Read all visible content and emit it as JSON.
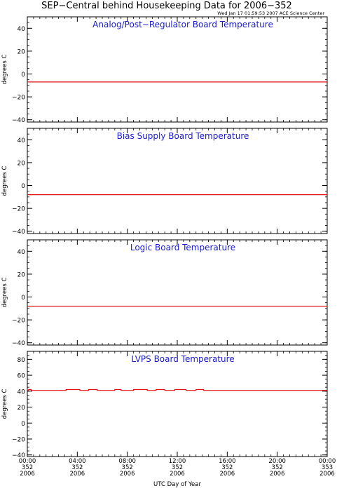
{
  "title": "SEP−Central behind Housekeeping Data for 2006−352",
  "timestamp": "Wed Jan 17 01:59:53 2007 ACE Science Center",
  "xlabel": "UTC Day of Year",
  "colors": {
    "axes": "#000000",
    "panel_title": "#1a1acc",
    "series": "#e01010"
  },
  "x_ticks": [
    {
      "value": 0,
      "time": "00:00",
      "doy": "352",
      "year": "2006"
    },
    {
      "value": 4,
      "time": "04:00",
      "doy": "352",
      "year": "2006"
    },
    {
      "value": 8,
      "time": "08:00",
      "doy": "352",
      "year": "2006"
    },
    {
      "value": 12,
      "time": "12:00",
      "doy": "352",
      "year": "2006"
    },
    {
      "value": 16,
      "time": "16:00",
      "doy": "352",
      "year": "2006"
    },
    {
      "value": 20,
      "time": "20:00",
      "doy": "352",
      "year": "2006"
    },
    {
      "value": 24,
      "time": "00:00",
      "doy": "353",
      "year": "2006"
    }
  ],
  "chart_data": [
    {
      "type": "line",
      "title": "Analog/Post−Regulator Board Temperature",
      "ylabel": "degrees C",
      "xlim": [
        0,
        24
      ],
      "ylim": [
        -42,
        50
      ],
      "yticks": [
        -40,
        -20,
        0,
        20,
        40
      ],
      "yminor": 5,
      "series": [
        {
          "x": [
            0,
            24
          ],
          "y": [
            -7,
            -7
          ]
        }
      ]
    },
    {
      "type": "line",
      "title": "Bias Supply Board Temperature",
      "ylabel": "degrees C",
      "xlim": [
        0,
        24
      ],
      "ylim": [
        -42,
        50
      ],
      "yticks": [
        -40,
        -20,
        0,
        20,
        40
      ],
      "yminor": 5,
      "series": [
        {
          "x": [
            0,
            24
          ],
          "y": [
            -8,
            -8
          ]
        }
      ]
    },
    {
      "type": "line",
      "title": "Logic Board Temperature",
      "ylabel": "degrees C",
      "xlim": [
        0,
        24
      ],
      "ylim": [
        -42,
        50
      ],
      "yticks": [
        -40,
        -20,
        0,
        20,
        40
      ],
      "yminor": 5,
      "series": [
        {
          "x": [
            0,
            24
          ],
          "y": [
            -8,
            -8
          ]
        }
      ]
    },
    {
      "type": "line",
      "title": "LVPS Board Temperature",
      "ylabel": "degrees C",
      "xlim": [
        0,
        24
      ],
      "ylim": [
        -42,
        90
      ],
      "yticks": [
        -40,
        -20,
        0,
        20,
        40,
        60,
        80
      ],
      "yminor": 5,
      "series": [
        {
          "x": [
            0,
            0.1,
            0.1,
            0.3,
            0.3,
            3.1,
            3.1,
            4.2,
            4.2,
            4.9,
            4.9,
            5.6,
            5.6,
            7.0,
            7.0,
            7.5,
            7.5,
            8.5,
            8.5,
            9.6,
            9.6,
            10.3,
            10.3,
            11.0,
            11.0,
            11.8,
            11.8,
            12.7,
            12.7,
            13.5,
            13.5,
            14.1,
            14.1,
            24
          ],
          "y": [
            41,
            41,
            42,
            42,
            41,
            41,
            42,
            42,
            41,
            41,
            42,
            42,
            41,
            41,
            42,
            42,
            41,
            41,
            42,
            42,
            41,
            41,
            42,
            42,
            41,
            41,
            42,
            42,
            41,
            41,
            42,
            42,
            41,
            41
          ]
        }
      ]
    }
  ]
}
